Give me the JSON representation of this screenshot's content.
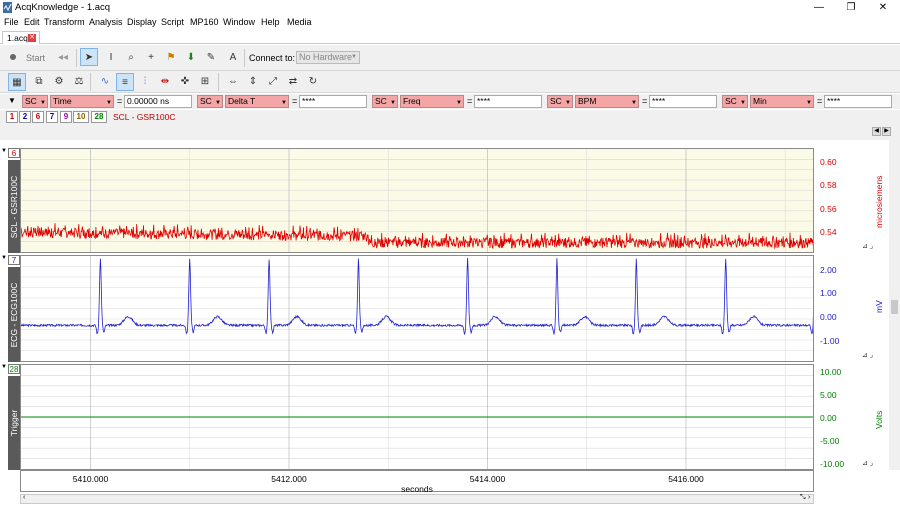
{
  "window": {
    "title": "AcqKnowledge - 1.acq",
    "min_glyph": "—",
    "max_glyph": "❐",
    "close_glyph": "✕"
  },
  "menu": [
    "File",
    "Edit",
    "Transform",
    "Analysis",
    "Display",
    "Script",
    "MP160",
    "Window",
    "Help",
    "Media"
  ],
  "tab": {
    "label": "1.acq",
    "close_glyph": "✕"
  },
  "toolbar": {
    "start_label": "Start",
    "connect_label": "Connect to:",
    "connect_value": "No Hardware"
  },
  "measurements": [
    {
      "channel": "SC",
      "type": "Time",
      "value": "0.00000 ns"
    },
    {
      "channel": "SC",
      "type": "Delta T",
      "value": "****"
    },
    {
      "channel": "SC",
      "type": "Freq",
      "value": "****"
    },
    {
      "channel": "SC",
      "type": "BPM",
      "value": "****"
    },
    {
      "channel": "SC",
      "type": "Min",
      "value": "****"
    }
  ],
  "channels": {
    "buttons": [
      {
        "label": "1",
        "color": "#c00000"
      },
      {
        "label": "2",
        "color": "#0000c0"
      },
      {
        "label": "6",
        "color": "#c00000"
      },
      {
        "label": "7",
        "color": "#0000c0"
      },
      {
        "label": "9",
        "color": "#a000a0"
      },
      {
        "label": "10",
        "color": "#806000"
      },
      {
        "label": "28",
        "color": "#008000"
      }
    ],
    "selected_label": "SCL - GSR100C"
  },
  "panes": [
    {
      "id": "6",
      "name": "SCL - GSR100C",
      "color": "#e00000",
      "unit": "microsiemens",
      "ticks": [
        "0.60",
        "0.58",
        "0.56",
        "0.54"
      ],
      "bg": "#fafae6"
    },
    {
      "id": "7",
      "name": "ECG - ECG100C",
      "color": "#2020d0",
      "unit": "mV",
      "ticks": [
        "2.00",
        "1.00",
        "0.00",
        "-1.00"
      ],
      "bg": "#ffffff"
    },
    {
      "id": "28",
      "name": "Trigger",
      "color": "#008000",
      "unit": "Volts",
      "ticks": [
        "10.00",
        "5.00",
        "0.00",
        "-5.00",
        "-10.00"
      ],
      "bg": "#ffffff"
    }
  ],
  "xaxis": {
    "ticks": [
      "5410.000",
      "5412.000",
      "5414.000",
      "5416.000"
    ],
    "unit": "seconds"
  },
  "chart_data": {
    "type": "line",
    "x_range": [
      5409.3,
      5417.3
    ],
    "series": [
      {
        "name": "SCL - GSR100C",
        "unit": "microsiemens",
        "ylim": [
          0.53,
          0.61
        ],
        "baseline_start": 0.545,
        "baseline_end": 0.537,
        "step_at": 5412.8
      },
      {
        "name": "ECG - ECG100C",
        "unit": "mV",
        "ylim": [
          -1.0,
          2.0
        ],
        "r_peaks_x": [
          5410.1,
          5411.0,
          5411.8,
          5412.7,
          5413.8,
          5414.7,
          5415.5,
          5416.4,
          5417.3
        ],
        "r_amplitude": 1.9
      },
      {
        "name": "Trigger",
        "unit": "Volts",
        "ylim": [
          -10,
          10
        ],
        "value": 0.0
      }
    ]
  }
}
